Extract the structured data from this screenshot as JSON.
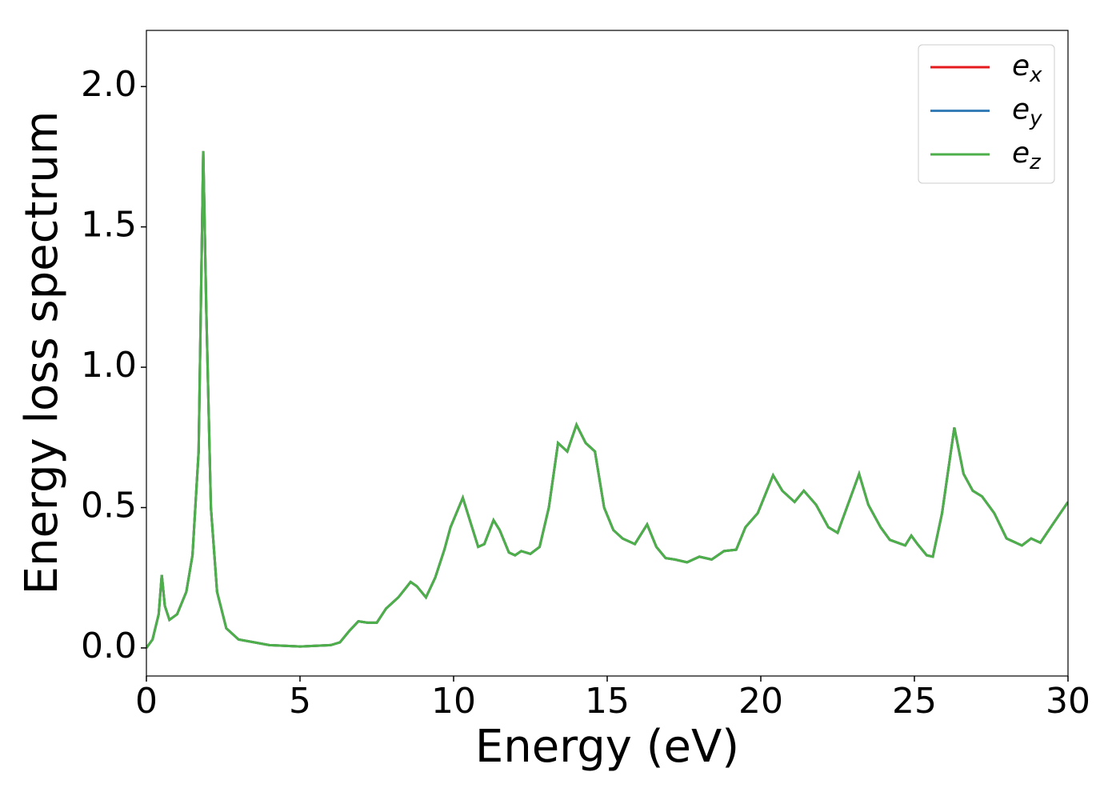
{
  "chart_data": {
    "type": "line",
    "xlabel": "Energy (eV)",
    "ylabel": "Energy loss spectrum",
    "x": [
      0,
      0.2,
      0.4,
      0.5,
      0.6,
      0.75,
      1.0,
      1.3,
      1.5,
      1.7,
      1.85,
      1.95,
      2.1,
      2.3,
      2.6,
      3,
      4,
      5,
      6,
      6.3,
      6.6,
      6.9,
      7.2,
      7.5,
      7.8,
      8.2,
      8.6,
      8.8,
      9.1,
      9.4,
      9.7,
      9.9,
      10.3,
      10.6,
      10.8,
      11.0,
      11.3,
      11.5,
      11.8,
      12.0,
      12.2,
      12.5,
      12.8,
      13.1,
      13.4,
      13.7,
      14.0,
      14.3,
      14.6,
      14.9,
      15.2,
      15.5,
      15.9,
      16.3,
      16.6,
      16.9,
      17.2,
      17.6,
      18.0,
      18.4,
      18.8,
      19.2,
      19.5,
      19.9,
      20.4,
      20.7,
      21.1,
      21.4,
      21.8,
      22.2,
      22.5,
      22.9,
      23.2,
      23.5,
      23.9,
      24.2,
      24.7,
      24.9,
      25.1,
      25.4,
      25.6,
      25.9,
      26.3,
      26.6,
      26.9,
      27.2,
      27.6,
      28.0,
      28.5,
      28.8,
      29.1,
      29.5,
      30
    ],
    "series": [
      {
        "name": "e_x",
        "color": "#e41a1c",
        "values": [
          0,
          0.03,
          0.12,
          0.26,
          0.15,
          0.1,
          0.12,
          0.2,
          0.33,
          0.7,
          1.77,
          1.2,
          0.5,
          0.2,
          0.07,
          0.03,
          0.01,
          0.005,
          0.01,
          0.02,
          0.06,
          0.095,
          0.09,
          0.09,
          0.14,
          0.18,
          0.235,
          0.22,
          0.18,
          0.25,
          0.35,
          0.43,
          0.535,
          0.43,
          0.36,
          0.37,
          0.455,
          0.42,
          0.34,
          0.33,
          0.345,
          0.335,
          0.36,
          0.5,
          0.73,
          0.7,
          0.795,
          0.73,
          0.7,
          0.5,
          0.42,
          0.39,
          0.37,
          0.44,
          0.36,
          0.32,
          0.315,
          0.305,
          0.325,
          0.315,
          0.345,
          0.35,
          0.43,
          0.48,
          0.615,
          0.56,
          0.52,
          0.56,
          0.51,
          0.43,
          0.41,
          0.53,
          0.62,
          0.51,
          0.43,
          0.385,
          0.365,
          0.4,
          0.37,
          0.33,
          0.325,
          0.48,
          0.785,
          0.62,
          0.56,
          0.54,
          0.48,
          0.39,
          0.365,
          0.39,
          0.375,
          0.44,
          0.52
        ]
      },
      {
        "name": "e_y",
        "color": "#377eb8",
        "values": [
          0,
          0.03,
          0.12,
          0.26,
          0.15,
          0.1,
          0.12,
          0.2,
          0.33,
          0.7,
          1.77,
          1.2,
          0.5,
          0.2,
          0.07,
          0.03,
          0.01,
          0.005,
          0.01,
          0.02,
          0.06,
          0.095,
          0.09,
          0.09,
          0.14,
          0.18,
          0.235,
          0.22,
          0.18,
          0.25,
          0.35,
          0.43,
          0.535,
          0.43,
          0.36,
          0.37,
          0.455,
          0.42,
          0.34,
          0.33,
          0.345,
          0.335,
          0.36,
          0.5,
          0.73,
          0.7,
          0.795,
          0.73,
          0.7,
          0.5,
          0.42,
          0.39,
          0.37,
          0.44,
          0.36,
          0.32,
          0.315,
          0.305,
          0.325,
          0.315,
          0.345,
          0.35,
          0.43,
          0.48,
          0.615,
          0.56,
          0.52,
          0.56,
          0.51,
          0.43,
          0.41,
          0.53,
          0.62,
          0.51,
          0.43,
          0.385,
          0.365,
          0.4,
          0.37,
          0.33,
          0.325,
          0.48,
          0.785,
          0.62,
          0.56,
          0.54,
          0.48,
          0.39,
          0.365,
          0.39,
          0.375,
          0.44,
          0.52
        ]
      },
      {
        "name": "e_z",
        "color": "#4daf4a",
        "values": [
          0,
          0.03,
          0.12,
          0.26,
          0.15,
          0.1,
          0.12,
          0.2,
          0.33,
          0.7,
          1.77,
          1.2,
          0.5,
          0.2,
          0.07,
          0.03,
          0.01,
          0.005,
          0.01,
          0.02,
          0.06,
          0.095,
          0.09,
          0.09,
          0.14,
          0.18,
          0.235,
          0.22,
          0.18,
          0.25,
          0.35,
          0.43,
          0.535,
          0.43,
          0.36,
          0.37,
          0.455,
          0.42,
          0.34,
          0.33,
          0.345,
          0.335,
          0.36,
          0.5,
          0.73,
          0.7,
          0.795,
          0.73,
          0.7,
          0.5,
          0.42,
          0.39,
          0.37,
          0.44,
          0.36,
          0.32,
          0.315,
          0.305,
          0.325,
          0.315,
          0.345,
          0.35,
          0.43,
          0.48,
          0.615,
          0.56,
          0.52,
          0.56,
          0.51,
          0.43,
          0.41,
          0.53,
          0.62,
          0.51,
          0.43,
          0.385,
          0.365,
          0.4,
          0.37,
          0.33,
          0.325,
          0.48,
          0.785,
          0.62,
          0.56,
          0.54,
          0.48,
          0.39,
          0.365,
          0.39,
          0.375,
          0.44,
          0.52
        ]
      }
    ],
    "xlim": [
      0,
      30
    ],
    "xticks": [
      0,
      5,
      10,
      15,
      20,
      25,
      30
    ],
    "ylim": [
      -0.1,
      2.2
    ],
    "yticks": [
      {
        "value": 0,
        "label": "0.0"
      },
      {
        "value": 0.5,
        "label": "0.5"
      },
      {
        "value": 1,
        "label": "1.0"
      },
      {
        "value": 1.5,
        "label": "1.5"
      },
      {
        "value": 2,
        "label": "2.0"
      }
    ],
    "legend": "upper right",
    "grid": false
  }
}
